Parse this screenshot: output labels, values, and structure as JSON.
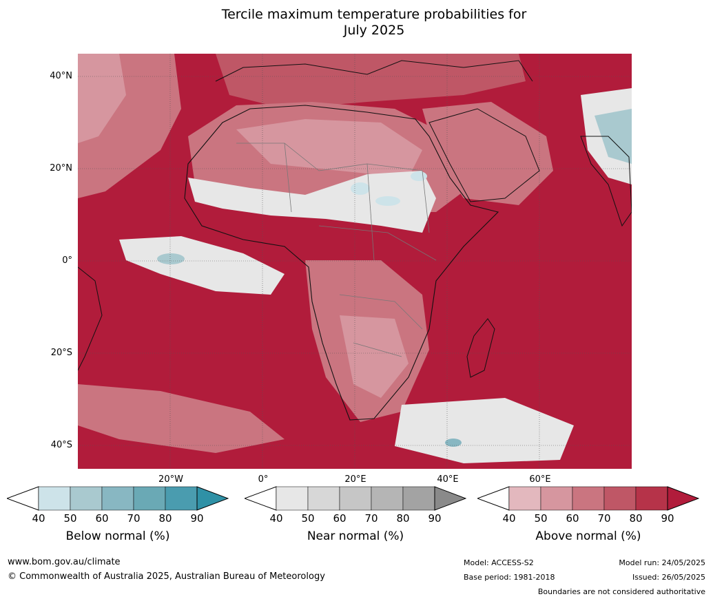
{
  "title_line1": "Tercile maximum temperature probabilities for",
  "title_line2": "July 2025",
  "lat_labels": [
    "40°N",
    "20°N",
    "0°",
    "20°S",
    "40°S"
  ],
  "lon_labels": [
    "20°W",
    "0°",
    "20°E",
    "40°E",
    "60°E"
  ],
  "colorbars": [
    {
      "label": "Below normal (%)",
      "ticks": [
        "40",
        "50",
        "60",
        "70",
        "80",
        "90"
      ],
      "colors": [
        "#cde3e9",
        "#a9c9cf",
        "#88b7c2",
        "#6aa9b5",
        "#4a9caf",
        "#2f91a6"
      ]
    },
    {
      "label": "Near normal (%)",
      "ticks": [
        "40",
        "50",
        "60",
        "70",
        "80",
        "90"
      ],
      "colors": [
        "#e7e7e7",
        "#d7d7d7",
        "#c6c6c6",
        "#b5b5b5",
        "#a3a3a3",
        "#8a8a8a"
      ]
    },
    {
      "label": "Above normal (%)",
      "ticks": [
        "40",
        "50",
        "60",
        "70",
        "80",
        "90"
      ],
      "colors": [
        "#e3b8be",
        "#d6969f",
        "#ca7580",
        "#bf5766",
        "#b63349",
        "#b11c3b"
      ]
    }
  ],
  "footer": {
    "website": "www.bom.gov.au/climate",
    "copyright": "© Commonwealth of Australia 2025, Australian Bureau of Meteorology",
    "model": "Model: ACCESS-S2",
    "base_period": "Base period: 1981-2018",
    "model_run": "Model run: 24/05/2025",
    "issued": "Issued: 26/05/2025",
    "disclaimer": "Boundaries are not considered authoritative"
  },
  "colors": {
    "ocean_dominant": "#b11c3b",
    "land_light": "#ca7580",
    "near_normal": "#e7e7e7",
    "below_normal": "#88b7c2"
  }
}
